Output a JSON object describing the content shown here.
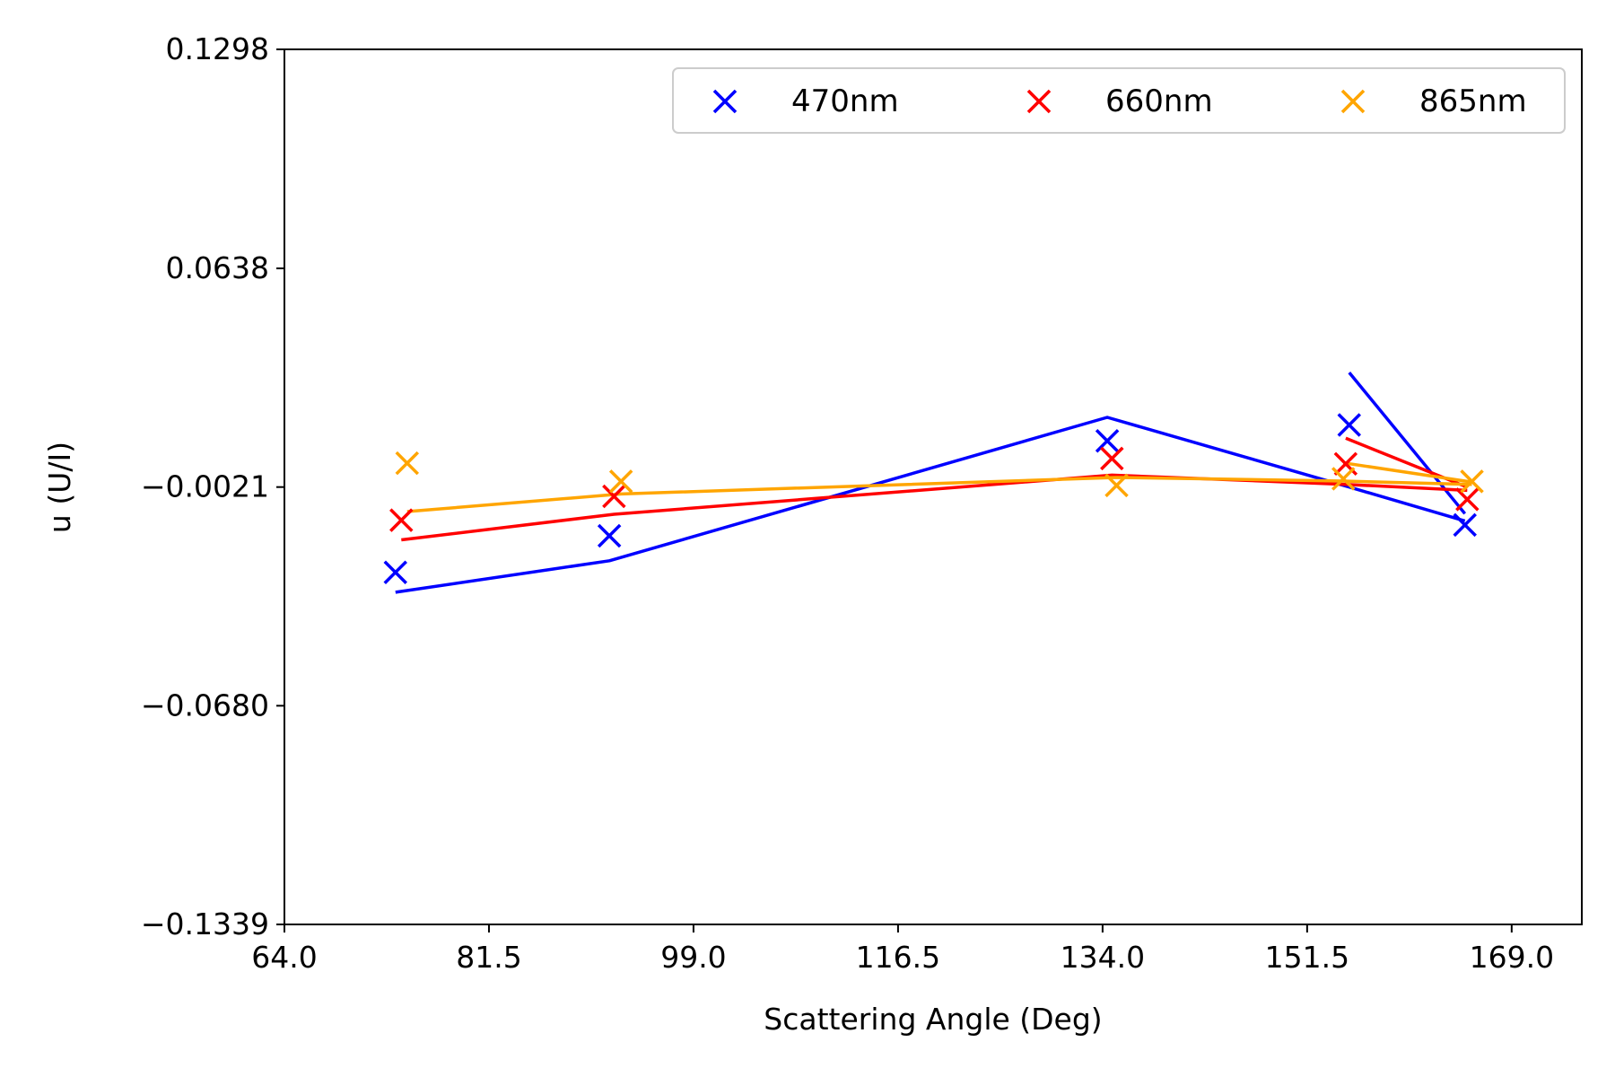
{
  "chart_data": {
    "type": "scatter",
    "xlabel": "Scattering Angle (Deg)",
    "ylabel": "u (U/I)",
    "xlim": [
      64.0,
      175.0
    ],
    "ylim": [
      -0.1339,
      0.1298
    ],
    "xticks": [
      "64.0",
      "81.5",
      "99.0",
      "116.5",
      "134.0",
      "151.5",
      "169.0"
    ],
    "yticks": [
      "0.1298",
      "0.0638",
      "-0.0021",
      "-0.0680",
      "-0.1339"
    ],
    "legend_position": "top-right",
    "series": [
      {
        "name": "470nm",
        "color": "#0000ff",
        "points": [
          {
            "x": 73.5,
            "y": -0.0278
          },
          {
            "x": 91.8,
            "y": -0.0168
          },
          {
            "x": 134.4,
            "y": 0.0118
          },
          {
            "x": 155.1,
            "y": 0.0166
          },
          {
            "x": 165.0,
            "y": -0.0135
          }
        ],
        "line": [
          {
            "x": 73.5,
            "y": -0.0338
          },
          {
            "x": 91.8,
            "y": -0.0243
          },
          {
            "x": 134.4,
            "y": 0.0189
          },
          {
            "x": 155.1,
            "y": -0.0021
          },
          {
            "x": 165.0,
            "y": -0.0123
          }
        ],
        "line2": [
          {
            "x": 155.1,
            "y": 0.0324
          },
          {
            "x": 165.0,
            "y": -0.0101
          }
        ]
      },
      {
        "name": "660nm",
        "color": "#ff0000",
        "points": [
          {
            "x": 74.0,
            "y": -0.0121
          },
          {
            "x": 92.2,
            "y": -0.0049
          },
          {
            "x": 134.8,
            "y": 0.0065
          },
          {
            "x": 154.8,
            "y": 0.0049
          },
          {
            "x": 165.2,
            "y": -0.0058
          }
        ],
        "line": [
          {
            "x": 74.0,
            "y": -0.018
          },
          {
            "x": 92.2,
            "y": -0.0103
          },
          {
            "x": 134.8,
            "y": 0.0015
          },
          {
            "x": 154.8,
            "y": -0.0013
          },
          {
            "x": 165.2,
            "y": -0.0031
          }
        ],
        "line2": [
          {
            "x": 154.8,
            "y": 0.0126
          },
          {
            "x": 165.2,
            "y": -0.0021
          }
        ]
      },
      {
        "name": "865nm",
        "color": "#ffa500",
        "points": [
          {
            "x": 74.5,
            "y": 0.0051
          },
          {
            "x": 92.8,
            "y": -0.0004
          },
          {
            "x": 135.2,
            "y": -0.0016
          },
          {
            "x": 154.6,
            "y": 0.0004
          },
          {
            "x": 165.6,
            "y": -0.0004
          }
        ],
        "line": [
          {
            "x": 74.5,
            "y": -0.0095
          },
          {
            "x": 92.8,
            "y": -0.0042
          },
          {
            "x": 135.2,
            "y": 0.0008
          },
          {
            "x": 154.6,
            "y": -0.0003
          },
          {
            "x": 165.6,
            "y": -0.0013
          }
        ],
        "line2": [
          {
            "x": 154.6,
            "y": 0.0052
          },
          {
            "x": 165.6,
            "y": -0.0006
          }
        ]
      }
    ]
  }
}
